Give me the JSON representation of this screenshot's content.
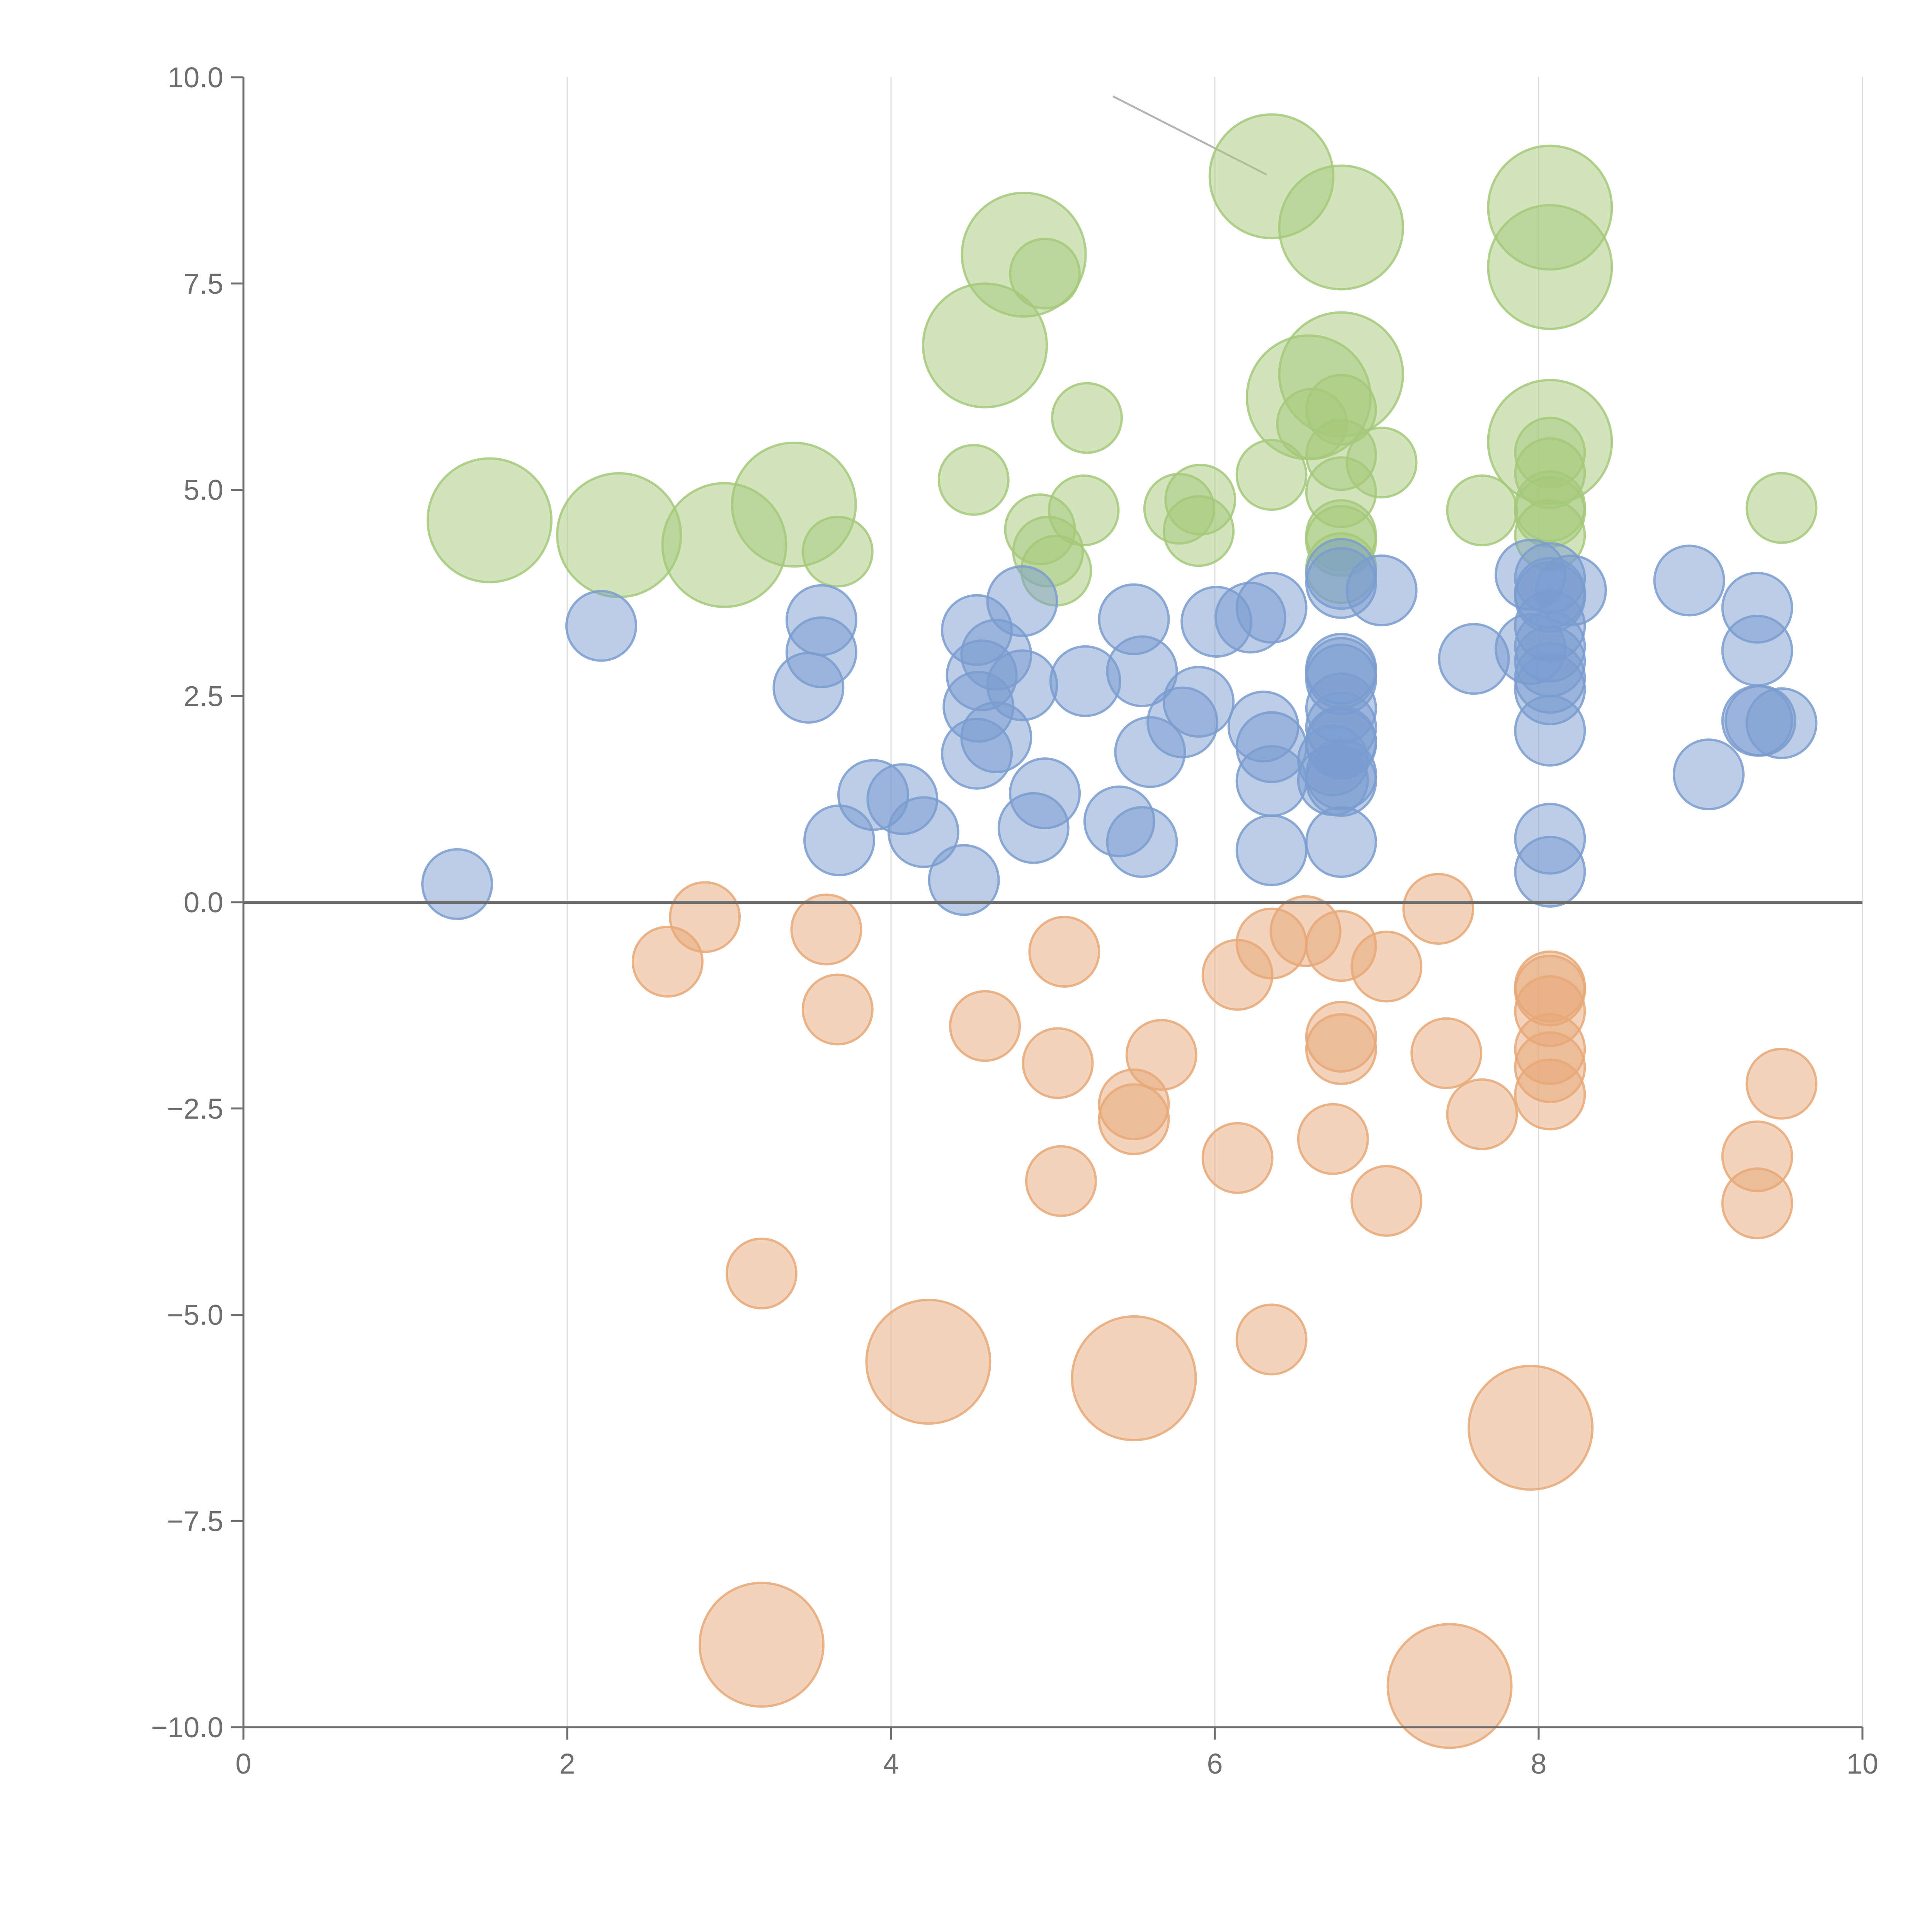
{
  "chart_data": {
    "type": "bubble",
    "title": "",
    "xlabel": "",
    "ylabel": "",
    "xlim": [
      0,
      10
    ],
    "ylim": [
      -10,
      10
    ],
    "x_ticks": [
      {
        "value": 0,
        "label": "0"
      },
      {
        "value": 2,
        "label": "2"
      },
      {
        "value": 4,
        "label": "4"
      },
      {
        "value": 6,
        "label": "6"
      },
      {
        "value": 8,
        "label": "8"
      },
      {
        "value": 10,
        "label": "10"
      }
    ],
    "y_ticks": [
      {
        "value": 10,
        "label": "10.0"
      },
      {
        "value": 7.5,
        "label": "7.5"
      },
      {
        "value": 5,
        "label": "5.0"
      },
      {
        "value": 2.5,
        "label": "2.5"
      },
      {
        "value": 0,
        "label": "0.0"
      },
      {
        "value": -2.5,
        "label": "−2.5"
      },
      {
        "value": -5,
        "label": "−5.0"
      },
      {
        "value": -7.5,
        "label": "−7.5"
      },
      {
        "value": -10,
        "label": "−10.0"
      }
    ],
    "grid": "vertical",
    "legend": "none",
    "series": [
      {
        "name": "green",
        "color": "#a5c97a",
        "points": [
          [
            1.52,
            4.63,
            1.6
          ],
          [
            2.32,
            4.45,
            1.6
          ],
          [
            2.97,
            4.33,
            1.6
          ],
          [
            3.4,
            4.82,
            1.6
          ],
          [
            3.67,
            4.25,
            0.9
          ],
          [
            4.58,
            6.75,
            1.6
          ],
          [
            4.82,
            7.85,
            1.6
          ],
          [
            4.95,
            7.62,
            0.9
          ],
          [
            4.51,
            5.12,
            0.9
          ],
          [
            5.21,
            5.87,
            0.9
          ],
          [
            4.92,
            4.52,
            0.9
          ],
          [
            4.97,
            4.25,
            0.9
          ],
          [
            5.02,
            4.02,
            0.9
          ],
          [
            5.19,
            4.75,
            0.9
          ],
          [
            6.35,
            8.8,
            1.6
          ],
          [
            6.78,
            8.18,
            1.6
          ],
          [
            6.58,
            6.12,
            1.6
          ],
          [
            6.78,
            6.4,
            1.6
          ],
          [
            6.6,
            5.8,
            0.9
          ],
          [
            6.78,
            5.97,
            0.9
          ],
          [
            6.35,
            5.18,
            0.9
          ],
          [
            6.78,
            5.42,
            0.9
          ],
          [
            7.03,
            5.33,
            0.9
          ],
          [
            6.78,
            4.97,
            0.9
          ],
          [
            6.78,
            4.45,
            0.9
          ],
          [
            6.78,
            4.38,
            0.9
          ],
          [
            6.78,
            4.05,
            0.9
          ],
          [
            5.78,
            4.77,
            0.9
          ],
          [
            5.91,
            4.88,
            0.9
          ],
          [
            5.9,
            4.5,
            0.9
          ],
          [
            7.65,
            4.75,
            0.9
          ],
          [
            8.07,
            8.42,
            1.6
          ],
          [
            8.07,
            7.7,
            1.6
          ],
          [
            8.07,
            5.58,
            1.6
          ],
          [
            8.07,
            5.45,
            0.9
          ],
          [
            8.07,
            5.2,
            0.9
          ],
          [
            8.07,
            4.8,
            0.9
          ],
          [
            8.07,
            4.73,
            0.9
          ],
          [
            8.07,
            4.45,
            0.9
          ],
          [
            9.5,
            4.78,
            0.9
          ]
        ]
      },
      {
        "name": "blue",
        "color": "#7a9ccf",
        "points": [
          [
            1.32,
            0.22,
            0.9
          ],
          [
            2.21,
            3.35,
            0.9
          ],
          [
            3.57,
            3.42,
            0.9
          ],
          [
            3.57,
            3.03,
            0.9
          ],
          [
            3.49,
            2.6,
            0.9
          ],
          [
            3.89,
            1.3,
            0.9
          ],
          [
            4.07,
            1.25,
            0.9
          ],
          [
            4.2,
            0.85,
            0.9
          ],
          [
            3.68,
            0.75,
            0.9
          ],
          [
            4.45,
            0.27,
            0.9
          ],
          [
            4.53,
            3.3,
            0.9
          ],
          [
            4.56,
            2.75,
            0.9
          ],
          [
            4.65,
            3.0,
            0.9
          ],
          [
            4.81,
            3.65,
            0.9
          ],
          [
            4.81,
            2.63,
            0.9
          ],
          [
            4.54,
            2.37,
            0.9
          ],
          [
            4.65,
            2.0,
            0.9
          ],
          [
            4.53,
            1.8,
            0.9
          ],
          [
            4.95,
            1.32,
            0.9
          ],
          [
            4.88,
            0.9,
            0.9
          ],
          [
            5.2,
            2.68,
            0.9
          ],
          [
            5.5,
            3.43,
            0.9
          ],
          [
            5.55,
            2.8,
            0.9
          ],
          [
            5.9,
            2.43,
            0.9
          ],
          [
            5.8,
            2.18,
            0.9
          ],
          [
            5.6,
            1.82,
            0.9
          ],
          [
            5.41,
            0.98,
            0.9
          ],
          [
            5.55,
            0.73,
            0.9
          ],
          [
            6.01,
            3.4,
            0.9
          ],
          [
            6.22,
            3.45,
            0.9
          ],
          [
            6.35,
            3.57,
            0.9
          ],
          [
            6.3,
            2.13,
            0.9
          ],
          [
            6.35,
            1.88,
            0.9
          ],
          [
            6.35,
            1.47,
            0.9
          ],
          [
            6.35,
            0.63,
            0.9
          ],
          [
            6.78,
            3.98,
            0.9
          ],
          [
            6.78,
            3.87,
            0.9
          ],
          [
            6.78,
            2.83,
            0.9
          ],
          [
            6.78,
            2.78,
            0.9
          ],
          [
            6.78,
            2.7,
            0.9
          ],
          [
            6.78,
            2.35,
            0.9
          ],
          [
            6.78,
            2.12,
            0.9
          ],
          [
            6.78,
            1.95,
            0.9
          ],
          [
            6.78,
            1.92,
            0.9
          ],
          [
            6.73,
            1.72,
            0.9
          ],
          [
            6.78,
            1.55,
            0.9
          ],
          [
            6.73,
            1.48,
            0.9
          ],
          [
            6.78,
            1.47,
            0.9
          ],
          [
            6.78,
            0.73,
            0.9
          ],
          [
            7.03,
            3.78,
            0.9
          ],
          [
            7.6,
            2.95,
            0.9
          ],
          [
            7.95,
            3.97,
            0.9
          ],
          [
            8.07,
            3.93,
            0.9
          ],
          [
            8.07,
            3.75,
            0.9
          ],
          [
            8.07,
            3.7,
            0.9
          ],
          [
            8.2,
            3.78,
            0.9
          ],
          [
            8.07,
            3.35,
            0.9
          ],
          [
            8.07,
            3.1,
            0.9
          ],
          [
            7.95,
            3.07,
            0.9
          ],
          [
            8.07,
            2.92,
            0.9
          ],
          [
            8.07,
            2.72,
            0.9
          ],
          [
            8.07,
            2.58,
            0.9
          ],
          [
            8.07,
            2.08,
            0.9
          ],
          [
            8.07,
            0.77,
            0.9
          ],
          [
            8.07,
            0.37,
            0.9
          ],
          [
            8.93,
            3.9,
            0.9
          ],
          [
            9.35,
            3.57,
            0.9
          ],
          [
            9.35,
            3.05,
            0.9
          ],
          [
            9.35,
            2.2,
            0.9
          ],
          [
            9.37,
            2.2,
            0.9
          ],
          [
            9.5,
            2.17,
            0.9
          ],
          [
            9.05,
            1.55,
            0.9
          ]
        ]
      },
      {
        "name": "orange",
        "color": "#e8a877",
        "points": [
          [
            2.85,
            -0.18,
            0.9
          ],
          [
            2.62,
            -0.72,
            0.9
          ],
          [
            3.6,
            -0.33,
            0.9
          ],
          [
            3.67,
            -1.3,
            0.9
          ],
          [
            3.2,
            -4.5,
            0.9
          ],
          [
            3.2,
            -9.0,
            1.6
          ],
          [
            4.23,
            -5.57,
            1.6
          ],
          [
            4.58,
            -1.5,
            0.9
          ],
          [
            5.07,
            -0.6,
            0.9
          ],
          [
            5.03,
            -1.95,
            0.9
          ],
          [
            5.05,
            -3.38,
            0.9
          ],
          [
            5.67,
            -1.85,
            0.9
          ],
          [
            5.5,
            -2.45,
            0.9
          ],
          [
            5.5,
            -2.63,
            0.9
          ],
          [
            5.5,
            -5.77,
            1.6
          ],
          [
            6.14,
            -0.88,
            0.9
          ],
          [
            6.14,
            -3.1,
            0.9
          ],
          [
            6.35,
            -0.5,
            0.9
          ],
          [
            6.56,
            -0.35,
            0.9
          ],
          [
            6.35,
            -5.3,
            0.9
          ],
          [
            6.78,
            -0.53,
            0.9
          ],
          [
            7.06,
            -0.78,
            0.9
          ],
          [
            6.78,
            -1.63,
            0.9
          ],
          [
            6.78,
            -1.78,
            0.9
          ],
          [
            6.73,
            -2.87,
            0.9
          ],
          [
            7.06,
            -3.62,
            0.9
          ],
          [
            7.38,
            -0.08,
            0.9
          ],
          [
            7.43,
            -1.83,
            0.9
          ],
          [
            7.65,
            -2.57,
            0.9
          ],
          [
            7.45,
            -9.5,
            1.6
          ],
          [
            7.95,
            -6.37,
            1.6
          ],
          [
            8.07,
            -1.02,
            0.9
          ],
          [
            8.07,
            -1.07,
            0.9
          ],
          [
            8.07,
            -1.32,
            0.9
          ],
          [
            8.07,
            -1.78,
            0.9
          ],
          [
            8.07,
            -2.0,
            0.9
          ],
          [
            8.07,
            -2.33,
            0.9
          ],
          [
            9.35,
            -3.08,
            0.9
          ],
          [
            9.35,
            -3.65,
            0.9
          ],
          [
            9.5,
            -2.2,
            0.9
          ]
        ]
      }
    ],
    "leader_lines": [
      {
        "from": [
          5.37,
          9.77
        ],
        "to": [
          6.32,
          8.82
        ]
      }
    ]
  }
}
